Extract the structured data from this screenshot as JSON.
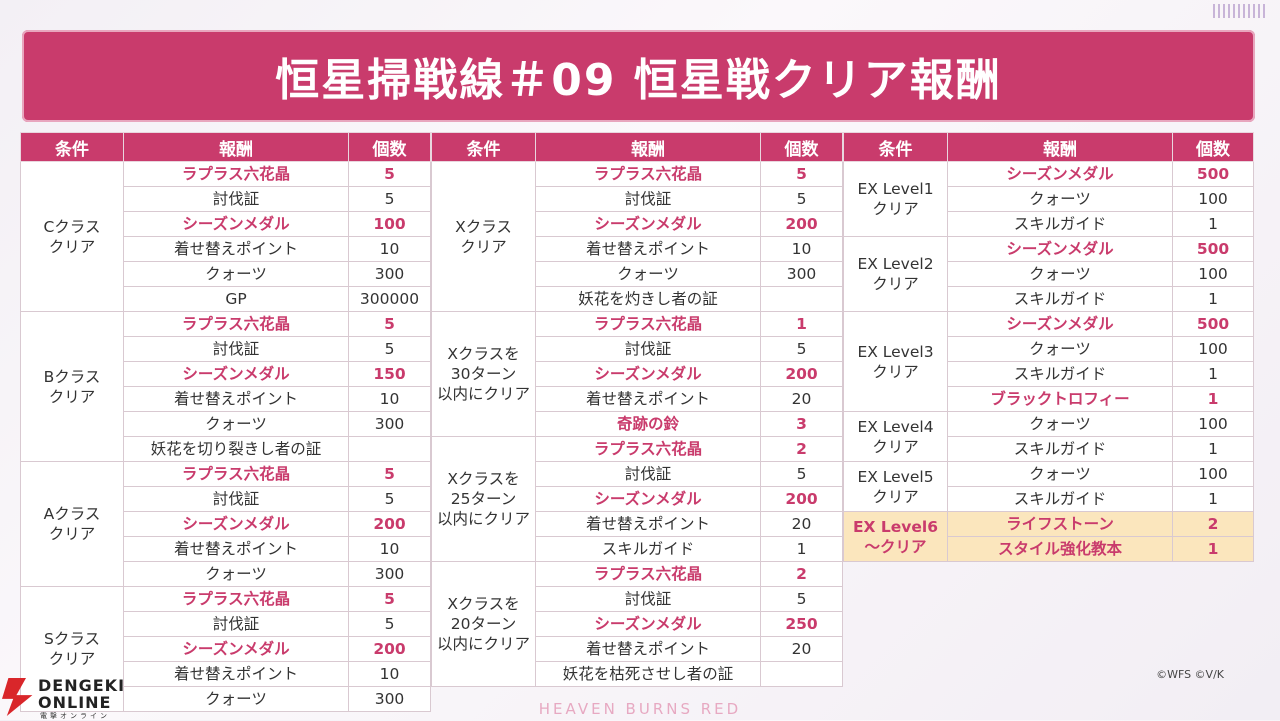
{
  "title": "恒星掃戦線＃09 恒星戦クリア報酬",
  "headers": {
    "cond": "条件",
    "reward": "報酬",
    "count": "個数"
  },
  "tables": [
    {
      "groups": [
        {
          "cond": "Cクラス\nクリア",
          "rows": [
            {
              "reward": "ラプラス六花晶",
              "count": "5",
              "hl": true
            },
            {
              "reward": "討伐証",
              "count": "5"
            },
            {
              "reward": "シーズンメダル",
              "count": "100",
              "hl": true
            },
            {
              "reward": "着せ替えポイント",
              "count": "10"
            },
            {
              "reward": "クォーツ",
              "count": "300"
            },
            {
              "reward": "GP",
              "count": "300000"
            }
          ]
        },
        {
          "cond": "Bクラス\nクリア",
          "rows": [
            {
              "reward": "ラプラス六花晶",
              "count": "5",
              "hl": true
            },
            {
              "reward": "討伐証",
              "count": "5"
            },
            {
              "reward": "シーズンメダル",
              "count": "150",
              "hl": true
            },
            {
              "reward": "着せ替えポイント",
              "count": "10"
            },
            {
              "reward": "クォーツ",
              "count": "300"
            },
            {
              "reward": "妖花を切り裂きし者の証",
              "count": ""
            }
          ]
        },
        {
          "cond": "Aクラス\nクリア",
          "rows": [
            {
              "reward": "ラプラス六花晶",
              "count": "5",
              "hl": true
            },
            {
              "reward": "討伐証",
              "count": "5"
            },
            {
              "reward": "シーズンメダル",
              "count": "200",
              "hl": true
            },
            {
              "reward": "着せ替えポイント",
              "count": "10"
            },
            {
              "reward": "クォーツ",
              "count": "300"
            }
          ]
        },
        {
          "cond": "Sクラス\nクリア",
          "rows": [
            {
              "reward": "ラプラス六花晶",
              "count": "5",
              "hl": true
            },
            {
              "reward": "討伐証",
              "count": "5"
            },
            {
              "reward": "シーズンメダル",
              "count": "200",
              "hl": true
            },
            {
              "reward": "着せ替えポイント",
              "count": "10"
            },
            {
              "reward": "クォーツ",
              "count": "300"
            }
          ]
        }
      ]
    },
    {
      "groups": [
        {
          "cond": "Xクラス\nクリア",
          "rows": [
            {
              "reward": "ラプラス六花晶",
              "count": "5",
              "hl": true
            },
            {
              "reward": "討伐証",
              "count": "5"
            },
            {
              "reward": "シーズンメダル",
              "count": "200",
              "hl": true
            },
            {
              "reward": "着せ替えポイント",
              "count": "10"
            },
            {
              "reward": "クォーツ",
              "count": "300"
            },
            {
              "reward": "妖花を灼きし者の証",
              "count": ""
            }
          ]
        },
        {
          "cond": "Xクラスを\n30ターン\n以内にクリア",
          "rows": [
            {
              "reward": "ラプラス六花晶",
              "count": "1",
              "hl": true
            },
            {
              "reward": "討伐証",
              "count": "5"
            },
            {
              "reward": "シーズンメダル",
              "count": "200",
              "hl": true
            },
            {
              "reward": "着せ替えポイント",
              "count": "20"
            },
            {
              "reward": "奇跡の鈴",
              "count": "3",
              "hl": true
            }
          ]
        },
        {
          "cond": "Xクラスを\n25ターン\n以内にクリア",
          "rows": [
            {
              "reward": "ラプラス六花晶",
              "count": "2",
              "hl": true
            },
            {
              "reward": "討伐証",
              "count": "5"
            },
            {
              "reward": "シーズンメダル",
              "count": "200",
              "hl": true
            },
            {
              "reward": "着せ替えポイント",
              "count": "20"
            },
            {
              "reward": "スキルガイド",
              "count": "1"
            }
          ]
        },
        {
          "cond": "Xクラスを\n20ターン\n以内にクリア",
          "rows": [
            {
              "reward": "ラプラス六花晶",
              "count": "2",
              "hl": true
            },
            {
              "reward": "討伐証",
              "count": "5"
            },
            {
              "reward": "シーズンメダル",
              "count": "250",
              "hl": true
            },
            {
              "reward": "着せ替えポイント",
              "count": "20"
            },
            {
              "reward": "妖花を枯死させし者の証",
              "count": ""
            }
          ]
        }
      ]
    },
    {
      "groups": [
        {
          "cond": "EX Level1\nクリア",
          "rows": [
            {
              "reward": "シーズンメダル",
              "count": "500",
              "hl": true
            },
            {
              "reward": "クォーツ",
              "count": "100"
            },
            {
              "reward": "スキルガイド",
              "count": "1"
            }
          ]
        },
        {
          "cond": "EX Level2\nクリア",
          "rows": [
            {
              "reward": "シーズンメダル",
              "count": "500",
              "hl": true
            },
            {
              "reward": "クォーツ",
              "count": "100"
            },
            {
              "reward": "スキルガイド",
              "count": "1"
            }
          ]
        },
        {
          "cond": "EX Level3\nクリア",
          "rows": [
            {
              "reward": "シーズンメダル",
              "count": "500",
              "hl": true
            },
            {
              "reward": "クォーツ",
              "count": "100"
            },
            {
              "reward": "スキルガイド",
              "count": "1"
            },
            {
              "reward": "ブラックトロフィー",
              "count": "1",
              "hl": true
            }
          ]
        },
        {
          "cond": "EX Level4\nクリア",
          "rows": [
            {
              "reward": "クォーツ",
              "count": "100"
            },
            {
              "reward": "スキルガイド",
              "count": "1"
            }
          ]
        },
        {
          "cond": "EX Level5\nクリア",
          "rows": [
            {
              "reward": "クォーツ",
              "count": "100"
            },
            {
              "reward": "スキルガイド",
              "count": "1"
            }
          ]
        },
        {
          "cond": "EX Level6\n～クリア",
          "gold": true,
          "hlCond": true,
          "rows": [
            {
              "reward": "ライフストーン",
              "count": "2",
              "hl": true
            },
            {
              "reward": "スタイル強化教本",
              "count": "1",
              "hl": true
            }
          ]
        }
      ]
    }
  ],
  "logo": {
    "line1": "DENGEKI",
    "line2": "ONLINE",
    "line3": "電撃オンライン"
  },
  "footer_brand": "HEAVEN BURNS RED",
  "copyright": "©WFS ©V/K",
  "colors": {
    "accent": "#c93b6c",
    "gold_row": "#fbe6bd"
  }
}
